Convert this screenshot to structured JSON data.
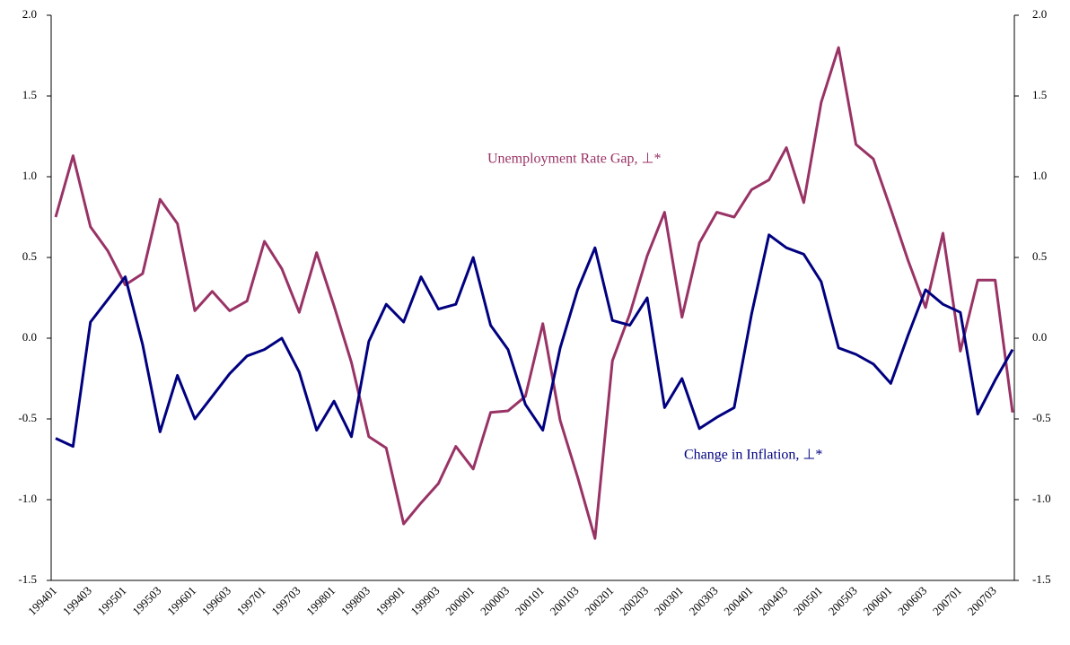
{
  "chart_data": {
    "type": "line",
    "categories": [
      "199401",
      null,
      "199403",
      null,
      "199501",
      null,
      "199503",
      null,
      "199601",
      null,
      "199603",
      null,
      "199701",
      null,
      "199703",
      null,
      "199801",
      null,
      "199803",
      null,
      "199901",
      null,
      "199903",
      null,
      "200001",
      null,
      "200003",
      null,
      "200101",
      null,
      "200103",
      null,
      "200201",
      null,
      "200203",
      null,
      "200301",
      null,
      "200303",
      null,
      "200401",
      null,
      "200403",
      null,
      "200501",
      null,
      "200503",
      null,
      "200601",
      null,
      "200603",
      null,
      "200701",
      null,
      "200703",
      null
    ],
    "series": [
      {
        "name": "Unemployment Rate Gap, ⊥*",
        "color": "#993366",
        "values": [
          0.75,
          1.13,
          0.69,
          0.54,
          0.33,
          0.4,
          0.86,
          0.71,
          0.17,
          0.29,
          0.17,
          0.23,
          0.6,
          0.43,
          0.16,
          0.53,
          0.2,
          -0.15,
          -0.61,
          -0.68,
          -1.15,
          -1.02,
          -0.9,
          -0.67,
          -0.81,
          -0.46,
          -0.45,
          -0.36,
          0.09,
          -0.51,
          -0.86,
          -1.24,
          -0.14,
          0.15,
          0.51,
          0.78,
          0.13,
          0.59,
          0.78,
          0.75,
          0.92,
          0.98,
          1.18,
          0.84,
          1.46,
          1.8,
          1.2,
          1.11,
          0.8,
          0.48,
          0.19,
          0.65,
          -0.08,
          0.36,
          0.36,
          -0.46
        ]
      },
      {
        "name": "Change in Inflation, ⊥*",
        "color": "#000080",
        "values": [
          -0.62,
          -0.67,
          0.1,
          0.24,
          0.38,
          -0.04,
          -0.58,
          -0.23,
          -0.5,
          -0.36,
          -0.22,
          -0.11,
          -0.07,
          0.0,
          -0.21,
          -0.57,
          -0.39,
          -0.61,
          -0.02,
          0.21,
          0.1,
          0.38,
          0.18,
          0.21,
          0.5,
          0.08,
          -0.07,
          -0.41,
          -0.57,
          -0.06,
          0.3,
          0.56,
          0.11,
          0.08,
          0.25,
          -0.43,
          -0.25,
          -0.56,
          -0.49,
          -0.43,
          0.15,
          0.64,
          0.56,
          0.52,
          0.35,
          -0.06,
          -0.1,
          -0.16,
          -0.28,
          0.02,
          0.3,
          0.21,
          0.16,
          -0.47,
          -0.26,
          -0.07
        ]
      }
    ],
    "ylim": [
      -1.5,
      2
    ],
    "yticks": [
      {
        "value": 2,
        "label": "2.0"
      },
      1.5,
      {
        "value": 1,
        "label": "1.0"
      },
      0.5,
      {
        "value": 0,
        "label": "0.0"
      },
      -0.5,
      {
        "value": -1,
        "label": "-1.0"
      },
      -1.5
    ],
    "y2lim": [
      -1.5,
      2
    ],
    "y2ticks": [
      {
        "value": 2,
        "label": "2.0"
      },
      1.5,
      {
        "value": 1,
        "label": "1.0"
      },
      0.5,
      {
        "value": 0,
        "label": "0.0"
      },
      -0.5,
      {
        "value": -1,
        "label": "-1.0"
      },
      -1.5
    ],
    "grid": false
  }
}
